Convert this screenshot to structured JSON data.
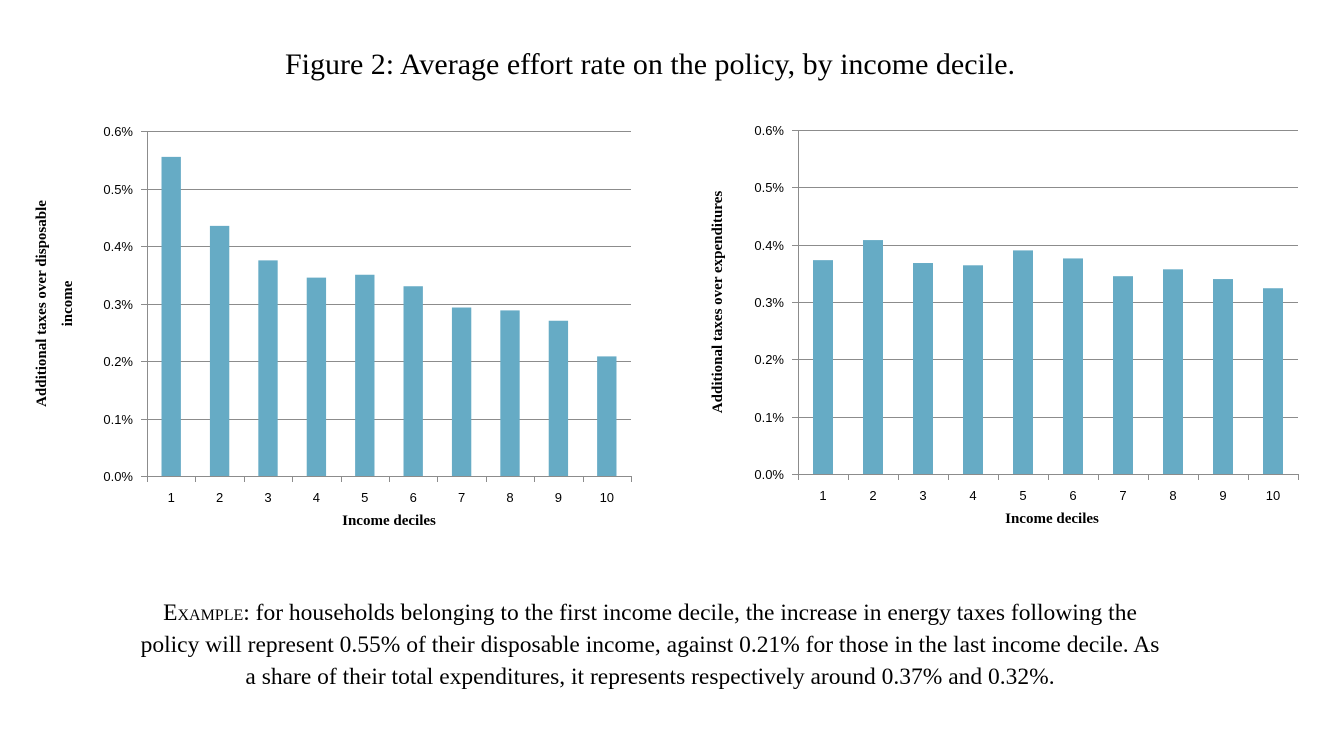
{
  "figure": {
    "title": "Figure 2: Average effort rate on the policy, by income decile."
  },
  "colors": {
    "bar": "#66abc5",
    "grid": "#8c8c8c",
    "axis": "#8c8c8c"
  },
  "chart_data": [
    {
      "type": "bar",
      "categories": [
        "1",
        "2",
        "3",
        "4",
        "5",
        "6",
        "7",
        "8",
        "9",
        "10"
      ],
      "values": [
        0.555,
        0.435,
        0.375,
        0.345,
        0.35,
        0.33,
        0.293,
        0.288,
        0.27,
        0.208
      ],
      "value_unit": "%",
      "xlabel": "Income deciles",
      "ylabel_lines": [
        "Additional taxes over disposable",
        "income"
      ],
      "ylim": [
        0,
        0.6
      ],
      "yticks": [
        "0.0%",
        "0.1%",
        "0.2%",
        "0.3%",
        "0.4%",
        "0.5%",
        "0.6%"
      ],
      "grid": true
    },
    {
      "type": "bar",
      "categories": [
        "1",
        "2",
        "3",
        "4",
        "5",
        "6",
        "7",
        "8",
        "9",
        "10"
      ],
      "values": [
        0.373,
        0.408,
        0.368,
        0.364,
        0.39,
        0.376,
        0.345,
        0.357,
        0.34,
        0.324
      ],
      "value_unit": "%",
      "xlabel": "Income deciles",
      "ylabel_lines": [
        "Additional taxes over expenditures"
      ],
      "ylim": [
        0,
        0.6
      ],
      "yticks": [
        "0.0%",
        "0.1%",
        "0.2%",
        "0.3%",
        "0.4%",
        "0.5%",
        "0.6%"
      ],
      "grid": true
    }
  ],
  "caption": {
    "lead": "Example:",
    "line1": "for households belonging to the first income decile, the increase in energy taxes following the",
    "line2": "policy will represent 0.55% of their disposable income, against 0.21% for those in the last income decile. As",
    "line3": "a share of their total expenditures, it represents respectively around 0.37% and 0.32%."
  }
}
